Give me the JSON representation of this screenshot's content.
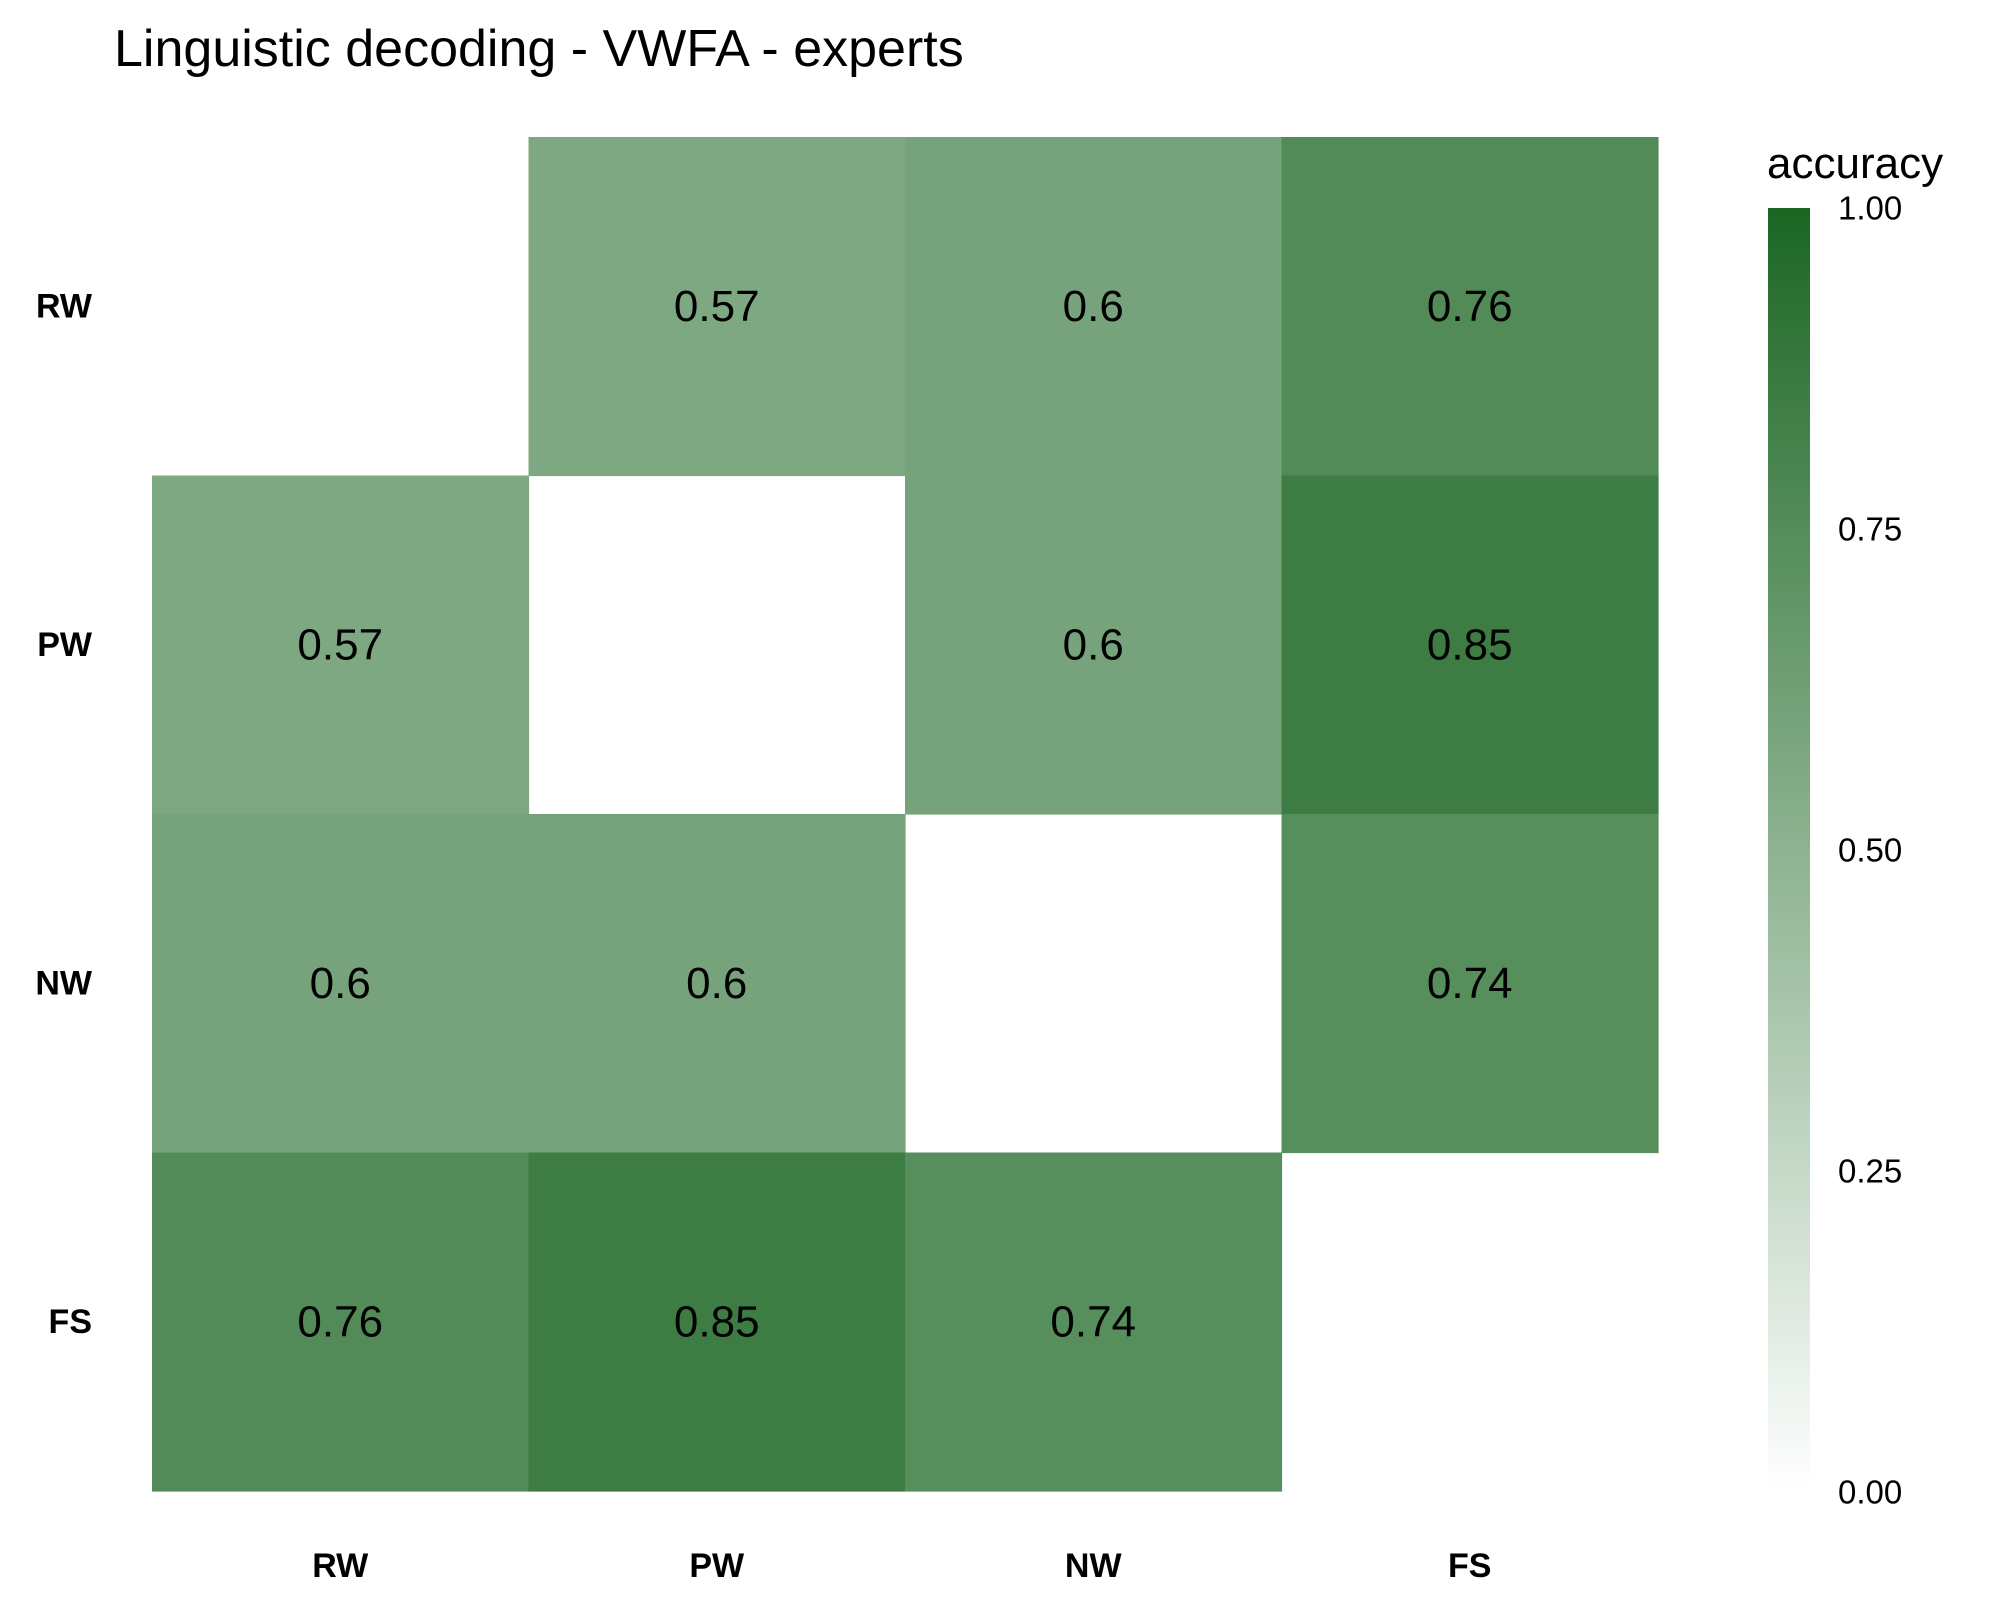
{
  "chart_data": {
    "type": "heatmap",
    "title": "Linguistic decoding - VWFA - experts",
    "x_categories": [
      "RW",
      "PW",
      "NW",
      "FS"
    ],
    "y_categories": [
      "RW",
      "PW",
      "NW",
      "FS"
    ],
    "matrix": [
      [
        null,
        0.57,
        0.6,
        0.76
      ],
      [
        0.57,
        null,
        0.6,
        0.85
      ],
      [
        0.6,
        0.6,
        null,
        0.74
      ],
      [
        0.76,
        0.85,
        0.74,
        null
      ]
    ],
    "labels": [
      [
        "",
        "0.57",
        "0.6",
        "0.76"
      ],
      [
        "0.57",
        "",
        "0.6",
        "0.85"
      ],
      [
        "0.6",
        "0.6",
        "",
        "0.74"
      ],
      [
        "0.76",
        "0.85",
        "0.74",
        ""
      ]
    ],
    "color_scale": {
      "title": "accuracy",
      "min": 0,
      "max": 1,
      "low_color": "#ffffff",
      "high_color": "#1b6623",
      "ticks": [
        0,
        0.25,
        0.5,
        0.75,
        1
      ],
      "tick_labels": [
        "0.00",
        "0.25",
        "0.50",
        "0.75",
        "1.00"
      ]
    }
  }
}
